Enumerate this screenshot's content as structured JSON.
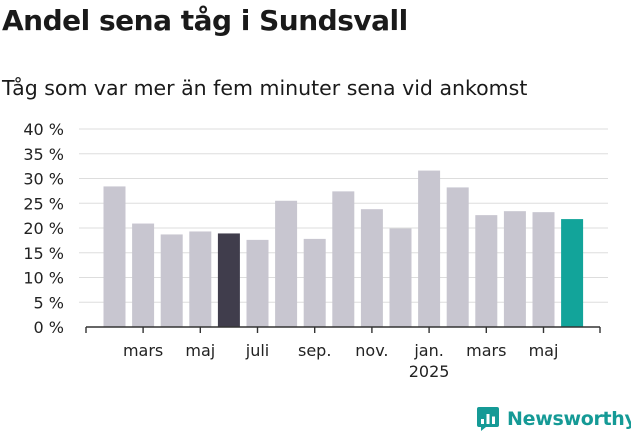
{
  "header": {
    "title": "Andel sena tåg i Sundsvall",
    "subtitle": "Tåg som var mer än fem minuter sena vid ankomst"
  },
  "brand": {
    "name": "Newsworthy",
    "icon": "newsworthy-logo-icon",
    "color": "#159a96"
  },
  "chart_data": {
    "type": "bar",
    "title": "Andel sena tåg i Sundsvall",
    "subtitle": "Tåg som var mer än fem minuter sena vid ankomst",
    "xlabel": "",
    "ylabel": "",
    "categories": [
      "2024-02",
      "2024-03",
      "2024-04",
      "2024-05",
      "2024-06",
      "2024-07",
      "2024-08",
      "2024-09",
      "2024-10",
      "2024-11",
      "2024-12",
      "2025-01",
      "2025-02",
      "2025-03",
      "2025-04",
      "2025-05",
      "2025-06"
    ],
    "values": [
      28.4,
      20.9,
      18.7,
      19.3,
      18.9,
      17.6,
      25.5,
      17.8,
      27.4,
      23.8,
      19.9,
      31.6,
      28.2,
      22.6,
      23.4,
      23.2,
      21.8
    ],
    "ylim": [
      0,
      40
    ],
    "yticks": [
      0,
      5,
      10,
      15,
      20,
      25,
      30,
      35,
      40
    ],
    "ytick_labels": [
      "0 %",
      "5 %",
      "10 %",
      "15 %",
      "20 %",
      "25 %",
      "30 %",
      "35 %",
      "40 %"
    ],
    "xtick_labels": [
      {
        "category": "2024-03",
        "label": "mars"
      },
      {
        "category": "2024-05",
        "label": "maj"
      },
      {
        "category": "2024-07",
        "label": "juli"
      },
      {
        "category": "2024-09",
        "label": "sep."
      },
      {
        "category": "2024-11",
        "label": "nov."
      },
      {
        "category": "2025-01",
        "label": "jan.",
        "sublabel": "2025"
      },
      {
        "category": "2025-03",
        "label": "mars"
      },
      {
        "category": "2025-05",
        "label": "maj"
      }
    ],
    "highlights": [
      {
        "category": "2024-06",
        "color": "#403d4c"
      },
      {
        "category": "2025-06",
        "color": "#12a49a"
      }
    ],
    "bar_color": "#c8c6d0",
    "grid": true,
    "gridline_color": "#dddddd",
    "legend": "none"
  }
}
